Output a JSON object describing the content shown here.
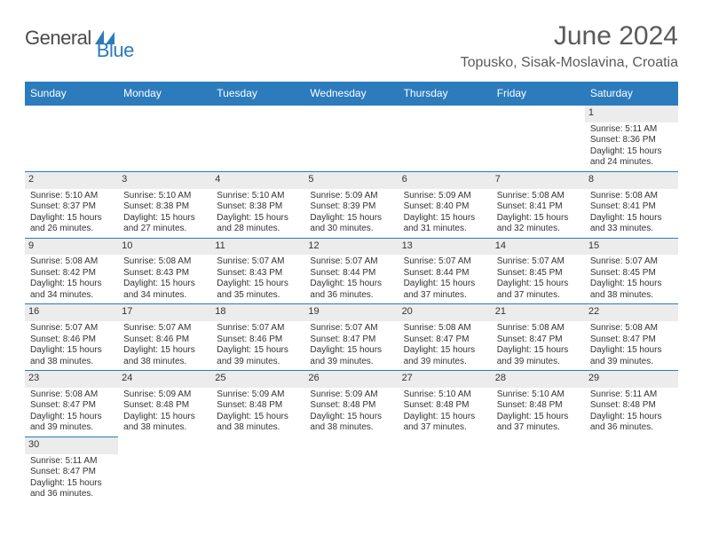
{
  "logo": {
    "text1": "General",
    "text2": "Blue"
  },
  "title": "June 2024",
  "location": "Topusko, Sisak-Moslavina, Croatia",
  "dayHeaders": [
    "Sunday",
    "Monday",
    "Tuesday",
    "Wednesday",
    "Thursday",
    "Friday",
    "Saturday"
  ],
  "colors": {
    "headerBg": "#2b7bbd",
    "headerText": "#ffffff",
    "border": "#2b7bbd",
    "bodyText": "#333333",
    "titleText": "#5a5a5a",
    "greyBg": "#ececec"
  },
  "weeks": [
    [
      null,
      null,
      null,
      null,
      null,
      null,
      {
        "n": "1",
        "sr": "Sunrise: 5:11 AM",
        "ss": "Sunset: 8:36 PM",
        "d1": "Daylight: 15 hours",
        "d2": "and 24 minutes."
      }
    ],
    [
      {
        "n": "2",
        "sr": "Sunrise: 5:10 AM",
        "ss": "Sunset: 8:37 PM",
        "d1": "Daylight: 15 hours",
        "d2": "and 26 minutes."
      },
      {
        "n": "3",
        "sr": "Sunrise: 5:10 AM",
        "ss": "Sunset: 8:38 PM",
        "d1": "Daylight: 15 hours",
        "d2": "and 27 minutes."
      },
      {
        "n": "4",
        "sr": "Sunrise: 5:10 AM",
        "ss": "Sunset: 8:38 PM",
        "d1": "Daylight: 15 hours",
        "d2": "and 28 minutes."
      },
      {
        "n": "5",
        "sr": "Sunrise: 5:09 AM",
        "ss": "Sunset: 8:39 PM",
        "d1": "Daylight: 15 hours",
        "d2": "and 30 minutes."
      },
      {
        "n": "6",
        "sr": "Sunrise: 5:09 AM",
        "ss": "Sunset: 8:40 PM",
        "d1": "Daylight: 15 hours",
        "d2": "and 31 minutes."
      },
      {
        "n": "7",
        "sr": "Sunrise: 5:08 AM",
        "ss": "Sunset: 8:41 PM",
        "d1": "Daylight: 15 hours",
        "d2": "and 32 minutes."
      },
      {
        "n": "8",
        "sr": "Sunrise: 5:08 AM",
        "ss": "Sunset: 8:41 PM",
        "d1": "Daylight: 15 hours",
        "d2": "and 33 minutes."
      }
    ],
    [
      {
        "n": "9",
        "sr": "Sunrise: 5:08 AM",
        "ss": "Sunset: 8:42 PM",
        "d1": "Daylight: 15 hours",
        "d2": "and 34 minutes."
      },
      {
        "n": "10",
        "sr": "Sunrise: 5:08 AM",
        "ss": "Sunset: 8:43 PM",
        "d1": "Daylight: 15 hours",
        "d2": "and 34 minutes."
      },
      {
        "n": "11",
        "sr": "Sunrise: 5:07 AM",
        "ss": "Sunset: 8:43 PM",
        "d1": "Daylight: 15 hours",
        "d2": "and 35 minutes."
      },
      {
        "n": "12",
        "sr": "Sunrise: 5:07 AM",
        "ss": "Sunset: 8:44 PM",
        "d1": "Daylight: 15 hours",
        "d2": "and 36 minutes."
      },
      {
        "n": "13",
        "sr": "Sunrise: 5:07 AM",
        "ss": "Sunset: 8:44 PM",
        "d1": "Daylight: 15 hours",
        "d2": "and 37 minutes."
      },
      {
        "n": "14",
        "sr": "Sunrise: 5:07 AM",
        "ss": "Sunset: 8:45 PM",
        "d1": "Daylight: 15 hours",
        "d2": "and 37 minutes."
      },
      {
        "n": "15",
        "sr": "Sunrise: 5:07 AM",
        "ss": "Sunset: 8:45 PM",
        "d1": "Daylight: 15 hours",
        "d2": "and 38 minutes."
      }
    ],
    [
      {
        "n": "16",
        "sr": "Sunrise: 5:07 AM",
        "ss": "Sunset: 8:46 PM",
        "d1": "Daylight: 15 hours",
        "d2": "and 38 minutes."
      },
      {
        "n": "17",
        "sr": "Sunrise: 5:07 AM",
        "ss": "Sunset: 8:46 PM",
        "d1": "Daylight: 15 hours",
        "d2": "and 38 minutes."
      },
      {
        "n": "18",
        "sr": "Sunrise: 5:07 AM",
        "ss": "Sunset: 8:46 PM",
        "d1": "Daylight: 15 hours",
        "d2": "and 39 minutes."
      },
      {
        "n": "19",
        "sr": "Sunrise: 5:07 AM",
        "ss": "Sunset: 8:47 PM",
        "d1": "Daylight: 15 hours",
        "d2": "and 39 minutes."
      },
      {
        "n": "20",
        "sr": "Sunrise: 5:08 AM",
        "ss": "Sunset: 8:47 PM",
        "d1": "Daylight: 15 hours",
        "d2": "and 39 minutes."
      },
      {
        "n": "21",
        "sr": "Sunrise: 5:08 AM",
        "ss": "Sunset: 8:47 PM",
        "d1": "Daylight: 15 hours",
        "d2": "and 39 minutes."
      },
      {
        "n": "22",
        "sr": "Sunrise: 5:08 AM",
        "ss": "Sunset: 8:47 PM",
        "d1": "Daylight: 15 hours",
        "d2": "and 39 minutes."
      }
    ],
    [
      {
        "n": "23",
        "sr": "Sunrise: 5:08 AM",
        "ss": "Sunset: 8:47 PM",
        "d1": "Daylight: 15 hours",
        "d2": "and 39 minutes."
      },
      {
        "n": "24",
        "sr": "Sunrise: 5:09 AM",
        "ss": "Sunset: 8:48 PM",
        "d1": "Daylight: 15 hours",
        "d2": "and 38 minutes."
      },
      {
        "n": "25",
        "sr": "Sunrise: 5:09 AM",
        "ss": "Sunset: 8:48 PM",
        "d1": "Daylight: 15 hours",
        "d2": "and 38 minutes."
      },
      {
        "n": "26",
        "sr": "Sunrise: 5:09 AM",
        "ss": "Sunset: 8:48 PM",
        "d1": "Daylight: 15 hours",
        "d2": "and 38 minutes."
      },
      {
        "n": "27",
        "sr": "Sunrise: 5:10 AM",
        "ss": "Sunset: 8:48 PM",
        "d1": "Daylight: 15 hours",
        "d2": "and 37 minutes."
      },
      {
        "n": "28",
        "sr": "Sunrise: 5:10 AM",
        "ss": "Sunset: 8:48 PM",
        "d1": "Daylight: 15 hours",
        "d2": "and 37 minutes."
      },
      {
        "n": "29",
        "sr": "Sunrise: 5:11 AM",
        "ss": "Sunset: 8:48 PM",
        "d1": "Daylight: 15 hours",
        "d2": "and 36 minutes."
      }
    ],
    [
      {
        "n": "30",
        "sr": "Sunrise: 5:11 AM",
        "ss": "Sunset: 8:47 PM",
        "d1": "Daylight: 15 hours",
        "d2": "and 36 minutes."
      },
      null,
      null,
      null,
      null,
      null,
      null
    ]
  ]
}
